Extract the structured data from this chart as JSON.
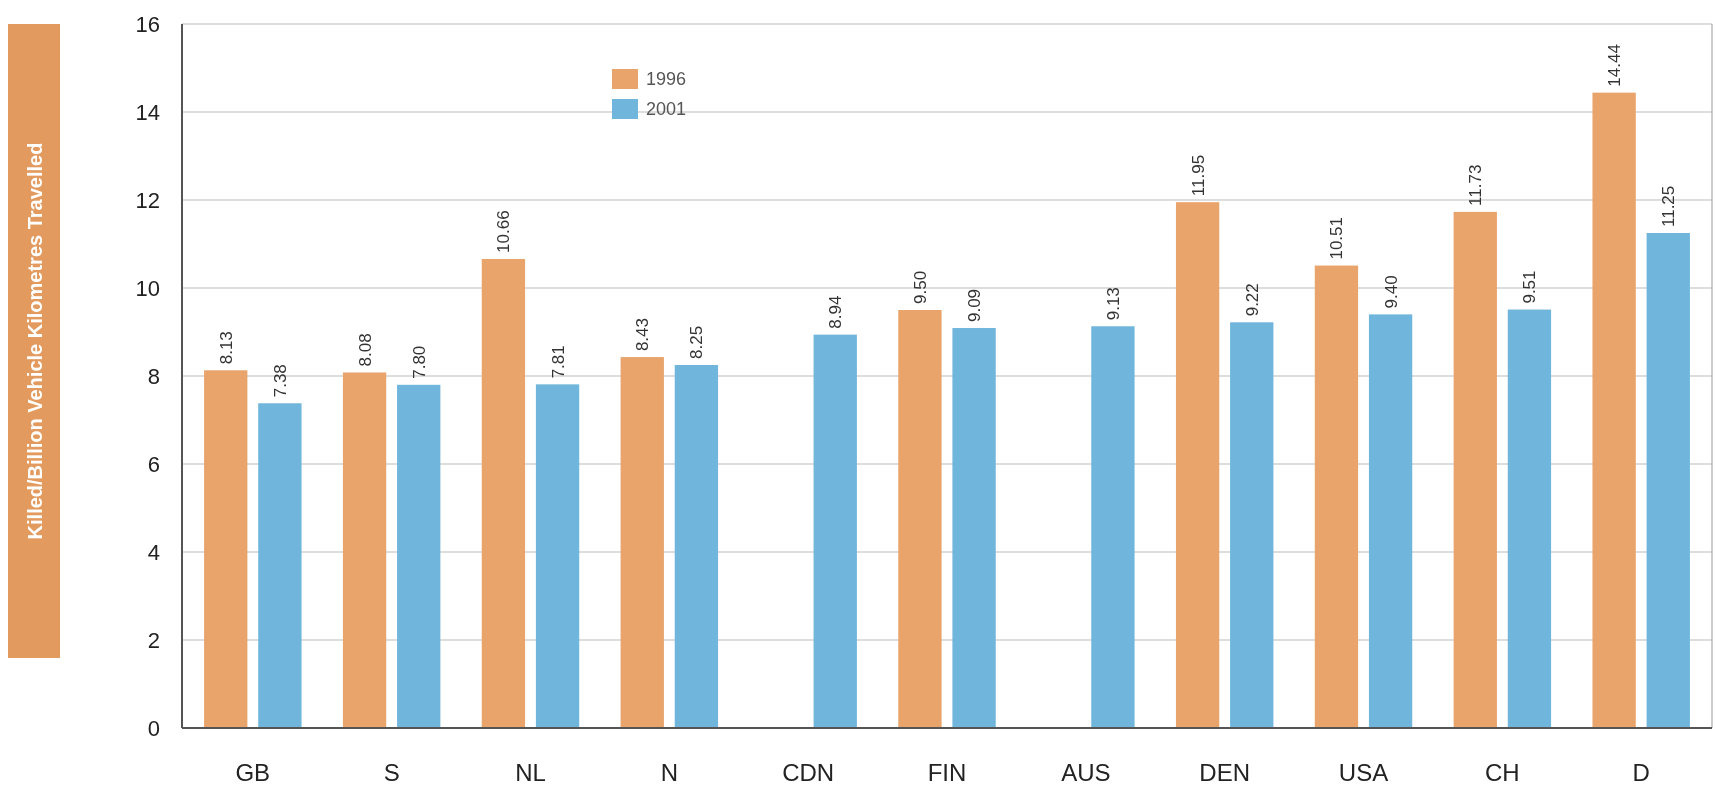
{
  "chart_data": {
    "type": "bar",
    "ylabel": "Killed/Billion Vehicle Kilometres Travelled",
    "categories": [
      "GB",
      "S",
      "NL",
      "N",
      "CDN",
      "FIN",
      "AUS",
      "DEN",
      "USA",
      "CH",
      "D"
    ],
    "series": [
      {
        "name": "1996",
        "color": "#e9a46c",
        "values": [
          8.13,
          8.08,
          10.66,
          8.43,
          null,
          9.5,
          null,
          11.95,
          10.51,
          11.73,
          14.44
        ],
        "value_labels": [
          "8.13",
          "8.08",
          "10.66",
          "8.43",
          null,
          "9.50",
          null,
          "11.95",
          "10.51",
          "11.73",
          "14.44"
        ]
      },
      {
        "name": "2001",
        "color": "#6fb5dc",
        "values": [
          7.38,
          7.8,
          7.81,
          8.25,
          8.94,
          9.09,
          9.13,
          9.22,
          9.4,
          9.51,
          11.25
        ],
        "value_labels": [
          "7.38",
          "7.80",
          "7.81",
          "8.25",
          "8.94",
          "9.09",
          "9.13",
          "9.22",
          "9.40",
          "9.51",
          "11.25"
        ]
      }
    ],
    "ylim": [
      0,
      16
    ],
    "yticks": [
      0,
      2,
      4,
      6,
      8,
      10,
      12,
      14,
      16
    ],
    "grid": "y",
    "legend": "top left"
  }
}
